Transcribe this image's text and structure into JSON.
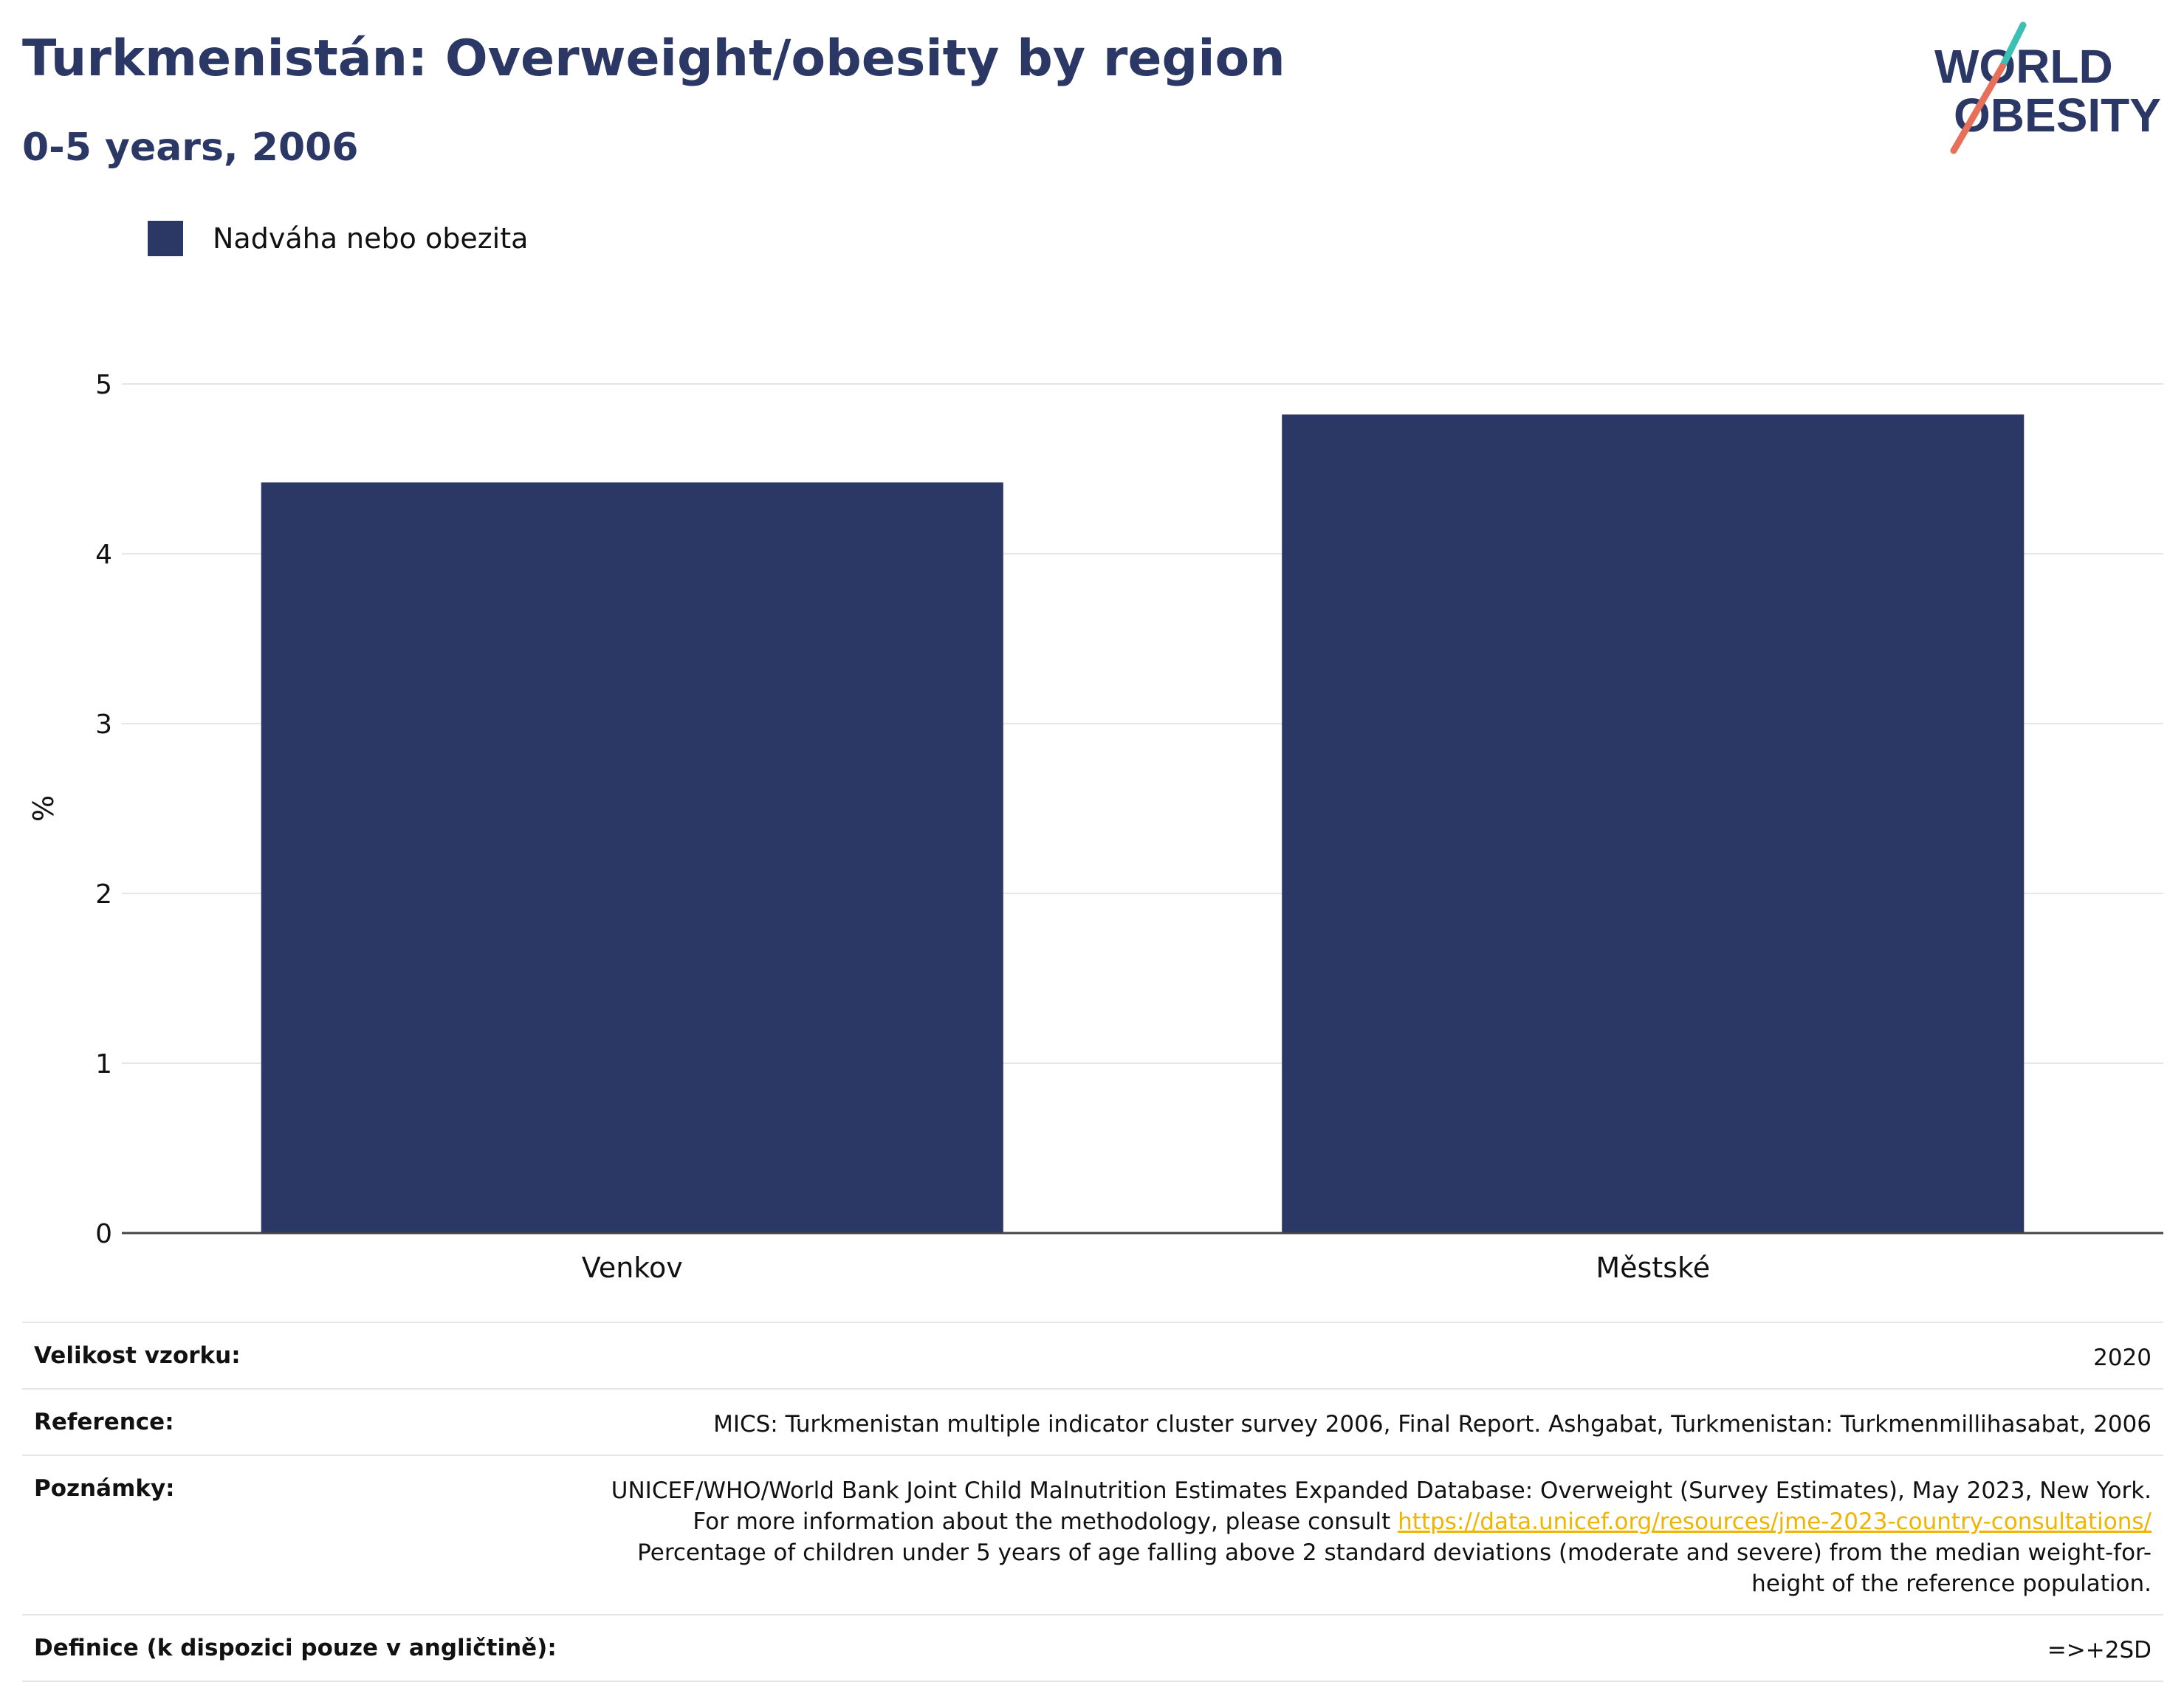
{
  "header": {
    "title": "Turkmenistán: Overweight/obesity by region",
    "subtitle": "0-5 years, 2006"
  },
  "logo": {
    "line1": "WORLD",
    "line2": "OBESITY",
    "colors": {
      "text": "#2b3765",
      "accent_teal": "#3cbfb4",
      "accent_coral": "#e8705a"
    }
  },
  "legend": {
    "label": "Nadváha nebo obezita",
    "color": "#2b3765"
  },
  "chart_data": {
    "type": "bar",
    "categories": [
      "Venkov",
      "Městské"
    ],
    "series": [
      {
        "name": "Nadváha nebo obezita",
        "values": [
          4.42,
          4.82
        ],
        "color": "#2b3765"
      }
    ],
    "ylabel": "%",
    "ylim": [
      0,
      5
    ],
    "yticks": [
      0,
      1,
      2,
      3,
      4,
      5
    ],
    "grid": true,
    "legend_position": "top-left"
  },
  "info": {
    "sample_size": {
      "label": "Velikost vzorku:",
      "value": "2020"
    },
    "reference": {
      "label": "Reference:",
      "value": "MICS: Turkmenistan multiple indicator cluster survey 2006, Final Report. Ashgabat, Turkmenistan: Turkmenmillihasabat, 2006"
    },
    "notes": {
      "label": "Poznámky:",
      "text_before": "UNICEF/WHO/World Bank Joint Child Malnutrition Estimates Expanded Database: Overweight (Survey Estimates), May 2023, New York. For more information about the methodology, please consult ",
      "link": "https://data.unicef.org/resources/jme-2023-country-consultations/",
      "text_after": " Percentage of children under 5 years of age falling above 2 standard deviations (moderate and severe) from the median weight-for-height of the reference population."
    },
    "definition": {
      "label": "Definice (k dispozici pouze v angličtině):",
      "value": "=>+2SD"
    }
  }
}
